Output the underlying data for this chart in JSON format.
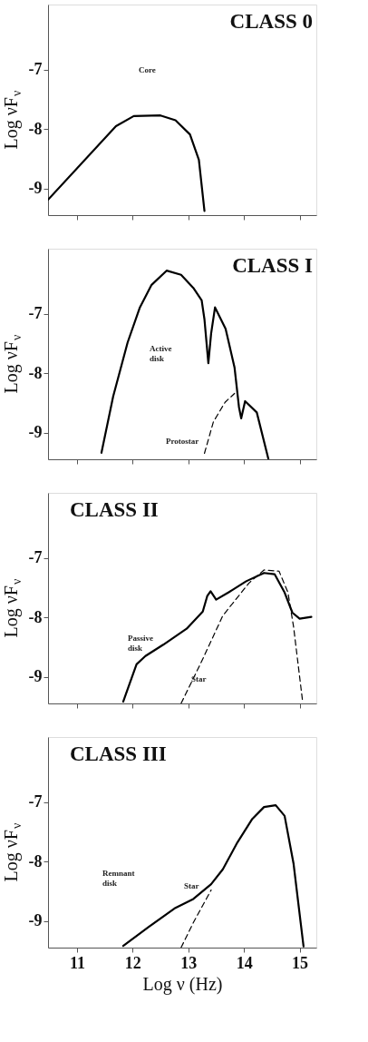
{
  "chart_data": [
    {
      "type": "line",
      "title": "CLASS 0",
      "ylabel": "Log νF$_{ν}$",
      "xlim": [
        10.48,
        15.3
      ],
      "ylim": [
        -9.45,
        -5.9
      ],
      "xticks": [
        11,
        12,
        13,
        14,
        15
      ],
      "yticks": [
        -7,
        -8,
        -9
      ],
      "tick_labels": "y",
      "grid": false,
      "series": [
        {
          "color": "#000000",
          "line_style": "solid",
          "x": [
            10.48,
            11.7,
            12.02,
            12.5,
            12.77,
            13.03,
            13.19,
            13.29
          ],
          "values": [
            -9.19,
            -7.95,
            -7.78,
            -7.77,
            -7.85,
            -8.09,
            -8.52,
            -9.38
          ]
        }
      ],
      "annotations": [
        "Core"
      ]
    },
    {
      "type": "line",
      "title": "CLASS I",
      "ylabel": "Log νF$_{ν}$",
      "xlim": [
        10.48,
        15.3
      ],
      "ylim": [
        -9.45,
        -5.9
      ],
      "xticks": [
        11,
        12,
        13,
        14,
        15
      ],
      "yticks": [
        -7,
        -8,
        -9
      ],
      "tick_labels": "y",
      "grid": false,
      "series": [
        {
          "color": "#000000",
          "line_style": "solid",
          "x": [
            11.44,
            11.65,
            11.91,
            12.13,
            12.34,
            12.61,
            12.87,
            13.09,
            13.24,
            13.29,
            13.36,
            13.41,
            13.48,
            13.67,
            13.83,
            13.91,
            13.95,
            14.02,
            14.23,
            14.44
          ],
          "values": [
            -9.34,
            -8.39,
            -7.48,
            -6.89,
            -6.51,
            -6.27,
            -6.34,
            -6.56,
            -6.77,
            -7.09,
            -7.83,
            -7.33,
            -6.89,
            -7.25,
            -7.9,
            -8.57,
            -8.76,
            -8.47,
            -8.66,
            -9.45
          ]
        },
        {
          "color": "#000000",
          "line_style": "dashed",
          "x": [
            13.29,
            13.45,
            13.66,
            13.83
          ],
          "values": [
            -9.35,
            -8.82,
            -8.49,
            -8.34
          ]
        }
      ],
      "annotations": [
        "Active\ndisk",
        "Protostar"
      ]
    },
    {
      "type": "line",
      "title": "CLASS II",
      "ylabel": "Log νF$_{ν}$",
      "xlim": [
        10.48,
        15.3
      ],
      "ylim": [
        -9.45,
        -5.9
      ],
      "xticks": [
        11,
        12,
        13,
        14,
        15
      ],
      "yticks": [
        -7,
        -8,
        -9
      ],
      "tick_labels": "y",
      "grid": false,
      "series": [
        {
          "color": "#000000",
          "line_style": "solid",
          "x": [
            11.83,
            12.07,
            12.23,
            12.55,
            12.97,
            13.26,
            13.34,
            13.4,
            13.5,
            13.72,
            14.04,
            14.36,
            14.55,
            14.73,
            14.87,
            15.0,
            15.21
          ],
          "values": [
            -9.42,
            -8.79,
            -8.65,
            -8.46,
            -8.19,
            -7.9,
            -7.64,
            -7.56,
            -7.7,
            -7.58,
            -7.39,
            -7.25,
            -7.27,
            -7.58,
            -7.92,
            -8.02,
            -7.99
          ]
        },
        {
          "color": "#000000",
          "line_style": "dashed",
          "x": [
            12.87,
            13.24,
            13.62,
            14.09,
            14.36,
            14.63,
            14.79,
            14.89,
            15.05
          ],
          "values": [
            -9.45,
            -8.74,
            -7.97,
            -7.42,
            -7.2,
            -7.22,
            -7.58,
            -8.15,
            -9.39
          ]
        }
      ],
      "annotations": [
        "Passive\ndisk",
        "Star"
      ]
    },
    {
      "type": "line",
      "title": "CLASS III",
      "xlabel": "Log ν (Hz)",
      "ylabel": "Log νF$_{ν}$",
      "xlim": [
        10.48,
        15.3
      ],
      "ylim": [
        -9.45,
        -5.9
      ],
      "xticks": [
        11,
        12,
        13,
        14,
        15
      ],
      "yticks": [
        -7,
        -8,
        -9
      ],
      "grid": false,
      "series": [
        {
          "color": "#000000",
          "line_style": "solid",
          "x": [
            11.83,
            12.29,
            12.77,
            13.09,
            13.41,
            13.62,
            13.88,
            14.15,
            14.36,
            14.57,
            14.73,
            14.89,
            15.07
          ],
          "values": [
            -9.42,
            -9.1,
            -8.78,
            -8.63,
            -8.38,
            -8.13,
            -7.68,
            -7.28,
            -7.08,
            -7.05,
            -7.23,
            -8.03,
            -9.43
          ]
        },
        {
          "color": "#000000",
          "line_style": "dashed",
          "x": [
            12.87,
            13.09,
            13.41
          ],
          "values": [
            -9.45,
            -9.03,
            -8.48
          ]
        }
      ],
      "annotations": [
        "Remnant\ndisk",
        "Star"
      ]
    }
  ]
}
